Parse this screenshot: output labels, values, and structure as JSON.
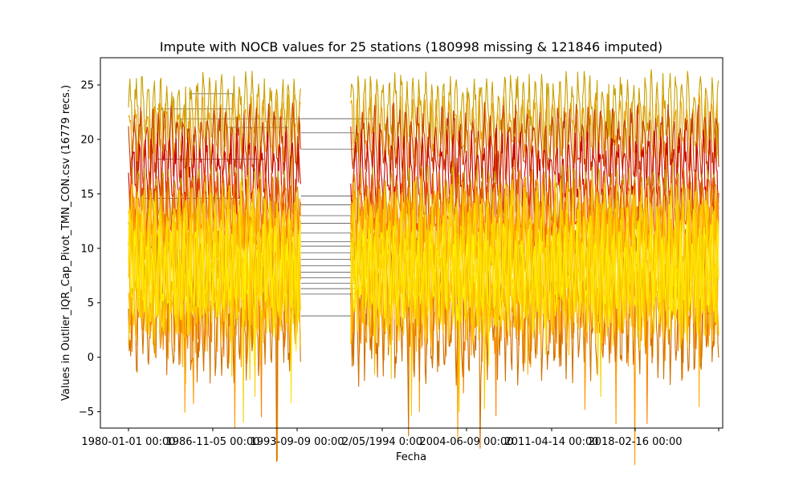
{
  "chart_data": {
    "type": "line",
    "title": "Impute with NOCB values for 25 stations (180998 missing & 121846 imputed)",
    "xlabel": "Fecha",
    "ylabel": "Values in Outlier_IQR_Cap_Pivot_TMN_CON.csv (16779 recs.)",
    "ylim": [
      -6.5,
      27.5
    ],
    "y_ticks": [
      -5,
      0,
      5,
      10,
      15,
      20,
      25
    ],
    "x_tick_labels": [
      "1980-01-01 00:00",
      "1986-11-05 00:00",
      "1993-09-09 00:00",
      "2/05/1994 0:00",
      "2004-06-09 00:00",
      "2011-04-14 00:00",
      "2018-02-16 00:00",
      ""
    ],
    "grid": false,
    "observed_periods": [
      [
        "1980-01-01",
        "1993-12-31"
      ],
      [
        "1998-01-01",
        "2025-06-30"
      ]
    ],
    "data_gap": [
      "1994-01-01",
      "1997-12-31"
    ],
    "series_count": 25,
    "series_colors": [
      "#c8a000",
      "#d4b400",
      "#e8a000",
      "#f0b000",
      "#c83c00",
      "#d85000",
      "#cc0000",
      "#e02000",
      "#f04000",
      "#ff8000",
      "#ff9a00",
      "#ffb000",
      "#ffc800",
      "#ffe000",
      "#fff000",
      "#e06000",
      "#b84800",
      "#d07000",
      "#f8d000",
      "#ffd800"
    ],
    "imputed_line_color": "#555555",
    "series_bands": [
      {
        "color": "#c8a000",
        "lo": 19.5,
        "hi": 25.5
      },
      {
        "color": "#e8a000",
        "lo": 18.0,
        "hi": 23.5
      },
      {
        "color": "#c83c00",
        "lo": 16.5,
        "hi": 22.5
      },
      {
        "color": "#cc0000",
        "lo": 13.5,
        "hi": 20.0
      },
      {
        "color": "#c8a000",
        "lo": 12.0,
        "hi": 17.0
      },
      {
        "color": "#f04000",
        "lo": 11.0,
        "hi": 16.5
      },
      {
        "color": "#e06000",
        "lo": 9.0,
        "hi": 15.5
      },
      {
        "color": "#ff8000",
        "lo": 2.0,
        "hi": 14.0
      },
      {
        "color": "#ff9a00",
        "lo": 1.0,
        "hi": 13.0
      },
      {
        "color": "#d07000",
        "lo": -1.0,
        "hi": 10.0
      },
      {
        "color": "#ffb000",
        "lo": 2.5,
        "hi": 14.0
      },
      {
        "color": "#ffc800",
        "lo": 3.0,
        "hi": 15.0
      },
      {
        "color": "#f8d000",
        "lo": 4.0,
        "hi": 14.5
      },
      {
        "color": "#ffe000",
        "lo": 3.5,
        "hi": 13.0
      },
      {
        "color": "#fff000",
        "lo": 4.5,
        "hi": 11.5
      }
    ]
  }
}
